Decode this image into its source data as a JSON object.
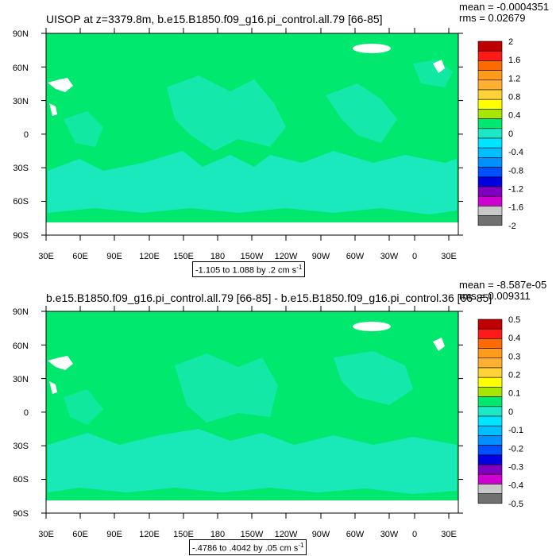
{
  "colors": {
    "background": "#ffffff",
    "map_fill_dominant": "#00e86e",
    "map_fill_secondary": "#1de8c5",
    "land": "#ffffff",
    "colorbar": [
      "#c00000",
      "#ff1a1a",
      "#ff6a00",
      "#ff9a1a",
      "#ffb033",
      "#ffd23a",
      "#ffff00",
      "#a6e600",
      "#00e86e",
      "#1de8c5",
      "#00e5ff",
      "#00bfff",
      "#0090ff",
      "#0050ff",
      "#0000e0",
      "#8000c0",
      "#d000d0",
      "#c8c8c8",
      "#707070"
    ]
  },
  "map_axes": {
    "lat_labels": [
      "90N",
      "60N",
      "30N",
      "0",
      "30S",
      "60S",
      "90S"
    ],
    "lon_labels": [
      "30E",
      "60E",
      "90E",
      "120E",
      "150E",
      "180",
      "150W",
      "120W",
      "90W",
      "60W",
      "30W",
      "0",
      "30E"
    ]
  },
  "panels": [
    {
      "title": "UISOP at z=3379.8m, b.e15.B1850.f09_g16.pi_control.all.79 [66-85]",
      "stats_mean": "mean = -0.0004351",
      "stats_rms": "rms = 0.02679",
      "range_label": "-1.105 to 1.088 by .2 cm s",
      "range_sup": "-1",
      "colorbar_labels": [
        "2",
        "1.6",
        "1.2",
        "0.8",
        "0.4",
        "0",
        "-0.4",
        "-0.8",
        "-1.2",
        "-1.6",
        "-2"
      ]
    },
    {
      "title": "b.e15.B1850.f09_g16.pi_control.all.79 [66-85] - b.e15.B1850.f09_g16.pi_control.36 [66-85]",
      "stats_mean": "mean = -8.587e-05",
      "stats_rms": "rms = 0.009311",
      "range_label": "-.4786 to .4042 by .05 cm s",
      "range_sup": "-1",
      "colorbar_labels": [
        "0.5",
        "0.4",
        "0.3",
        "0.2",
        "0.1",
        "0",
        "-0.1",
        "-0.2",
        "-0.3",
        "-0.4",
        "-0.5"
      ]
    }
  ]
}
